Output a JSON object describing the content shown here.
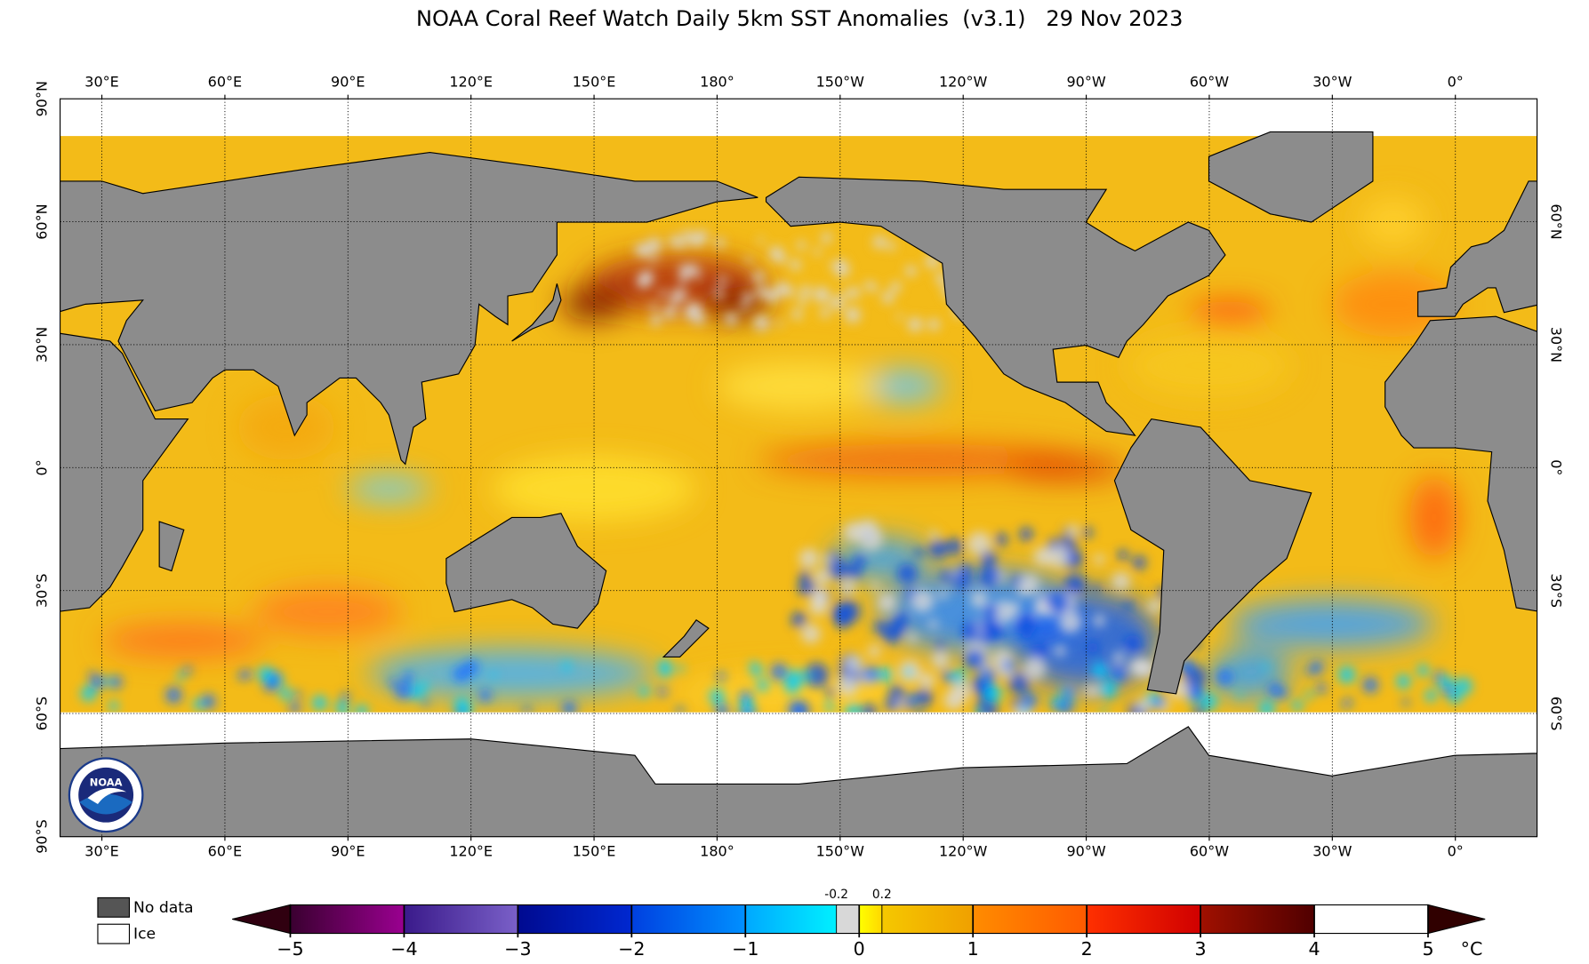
{
  "title": "NOAA Coral Reef Watch Daily 5km SST Anomalies  (v3.1)   29 Nov 2023",
  "map": {
    "lon_labels": [
      "30°E",
      "60°E",
      "90°E",
      "120°E",
      "150°E",
      "180°",
      "150°W",
      "120°W",
      "90°W",
      "60°W",
      "30°W",
      "0°"
    ],
    "lat_labels_left": [
      "90°N",
      "60°N",
      "30°N",
      "0°",
      "30°S",
      "60°S",
      "90°S"
    ],
    "lat_labels_right": [
      "60°N",
      "30°N",
      "0°",
      "30°S",
      "60°S"
    ]
  },
  "legend": {
    "no_data": "No data",
    "ice": "Ice"
  },
  "colorbar": {
    "unit": "°C",
    "ticks": [
      {
        "value": -5,
        "label": "−5"
      },
      {
        "value": -4,
        "label": "−4"
      },
      {
        "value": -3,
        "label": "−3"
      },
      {
        "value": -2,
        "label": "−2"
      },
      {
        "value": -1,
        "label": "−1"
      },
      0,
      1,
      2,
      3,
      4,
      5
    ],
    "inner_ticks": [
      -0.2,
      0.2
    ],
    "colors": [
      [
        "#3a0030",
        "#9a0090"
      ],
      [
        "#3a1a8a",
        "#7a60c8"
      ],
      [
        "#000a90",
        "#0028d0"
      ],
      [
        "#0040e0",
        "#0090ff"
      ],
      [
        "#00a8ff",
        "#00f0ff"
      ],
      [
        "#d8d8d8",
        "#d8d8d8"
      ],
      [
        "#ffff00",
        "#ffd800"
      ],
      [
        "#f5c800",
        "#f0a000"
      ],
      [
        "#ff8c00",
        "#ff5a00"
      ],
      [
        "#ff3000",
        "#d00000"
      ],
      [
        "#a01000",
        "#500000"
      ]
    ],
    "under_color": "#300010",
    "over_color": "#300000"
  }
}
